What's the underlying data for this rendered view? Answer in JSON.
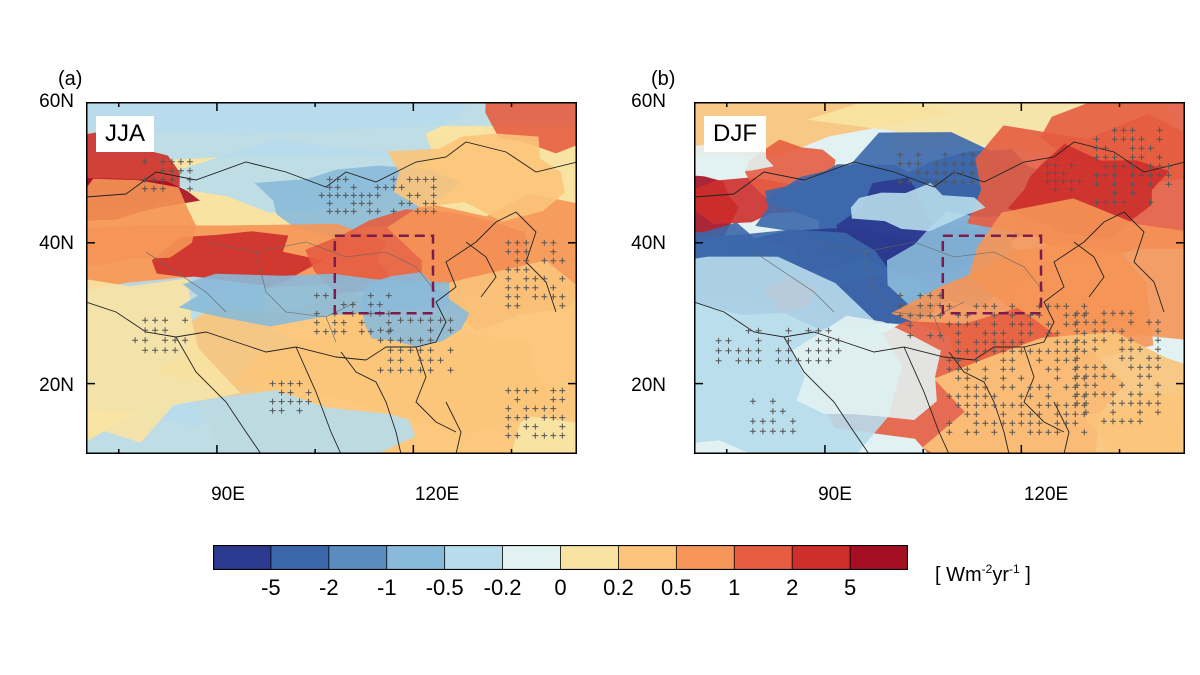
{
  "panels": [
    {
      "letter": "(a)",
      "season": "JJA",
      "lat_ticks": [
        "60N",
        "40N",
        "20N"
      ],
      "lon_ticks": [
        "90E",
        "120E"
      ]
    },
    {
      "letter": "(b)",
      "season": "DJF",
      "lat_ticks": [
        "60N",
        "40N",
        "20N"
      ],
      "lon_ticks": [
        "90E",
        "120E"
      ]
    }
  ],
  "colorbar": {
    "colors": [
      "#2b3a8f",
      "#3c68ab",
      "#5a8cc0",
      "#89bad9",
      "#b7dcec",
      "#e2f1f1",
      "#f8e3a3",
      "#fbc47a",
      "#f59557",
      "#e65d40",
      "#cd2f2b",
      "#a50f24"
    ],
    "labels": [
      "-5",
      "-2",
      "-1",
      "-0.5",
      "-0.2",
      "0",
      "0.2",
      "0.5",
      "1",
      "2",
      "5"
    ],
    "unit_open": "[ Wm",
    "unit_sup1": "-2",
    "unit_mid": "yr",
    "unit_sup2": "-1",
    "unit_close": " ]"
  },
  "region_box_color": "#7b1c4e",
  "stipple_color": "#555555"
}
